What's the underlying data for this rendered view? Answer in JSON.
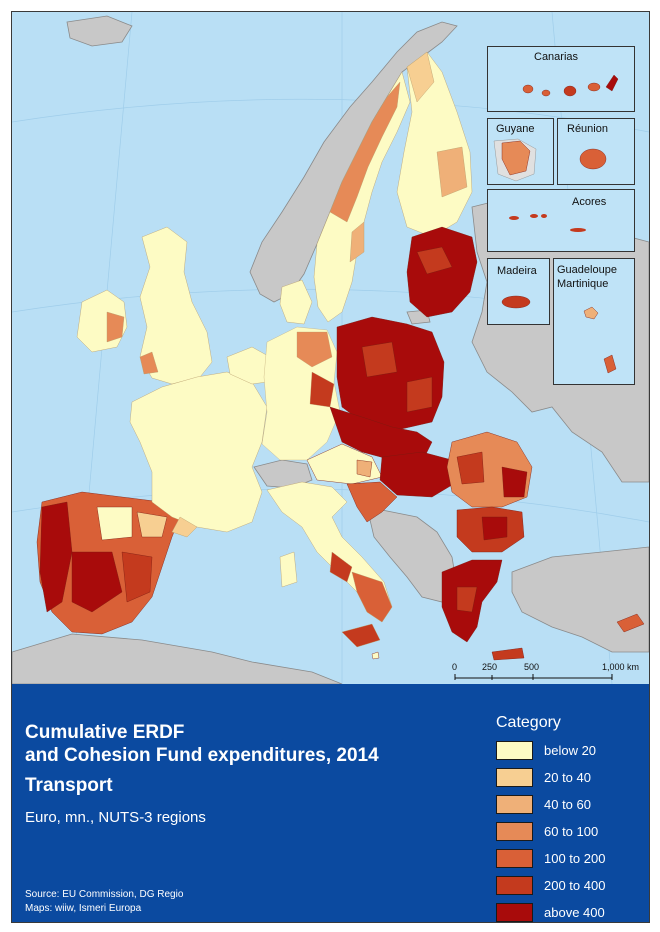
{
  "title_line1": "Cumulative ERDF",
  "title_line2": "and Cohesion Fund expenditures, 2014",
  "title_line3": "Transport",
  "subtitle": "Euro, mn., NUTS-3 regions",
  "source_line1": "Source: EU Commission, DG Regio",
  "source_line2": "Maps: wiiw, Ismeri Europa",
  "legend": {
    "title": "Category",
    "items": [
      {
        "label": "below 20",
        "color": "#fdfbc4"
      },
      {
        "label": "20 to 40",
        "color": "#f7cf92"
      },
      {
        "label": "40 to 60",
        "color": "#efb078"
      },
      {
        "label": "60 to 100",
        "color": "#e68a57"
      },
      {
        "label": "100 to 200",
        "color": "#d96037"
      },
      {
        "label": "200 to 400",
        "color": "#c43a1e"
      },
      {
        "label": "above 400",
        "color": "#a80b0b"
      }
    ]
  },
  "insets": [
    {
      "label": "Canarias"
    },
    {
      "label": "Guyane"
    },
    {
      "label": "Réunion"
    },
    {
      "label": "Acores"
    },
    {
      "label": "Madeira"
    },
    {
      "label": "Guadeloupe"
    },
    {
      "label": "Martinique"
    }
  ],
  "scale": {
    "ticks": [
      "0",
      "250",
      "500",
      "1,000 km"
    ]
  },
  "colors": {
    "sea": "#b9dff5",
    "non_eu_land": "#c8c8c8",
    "panel": "#0b4aa0"
  }
}
